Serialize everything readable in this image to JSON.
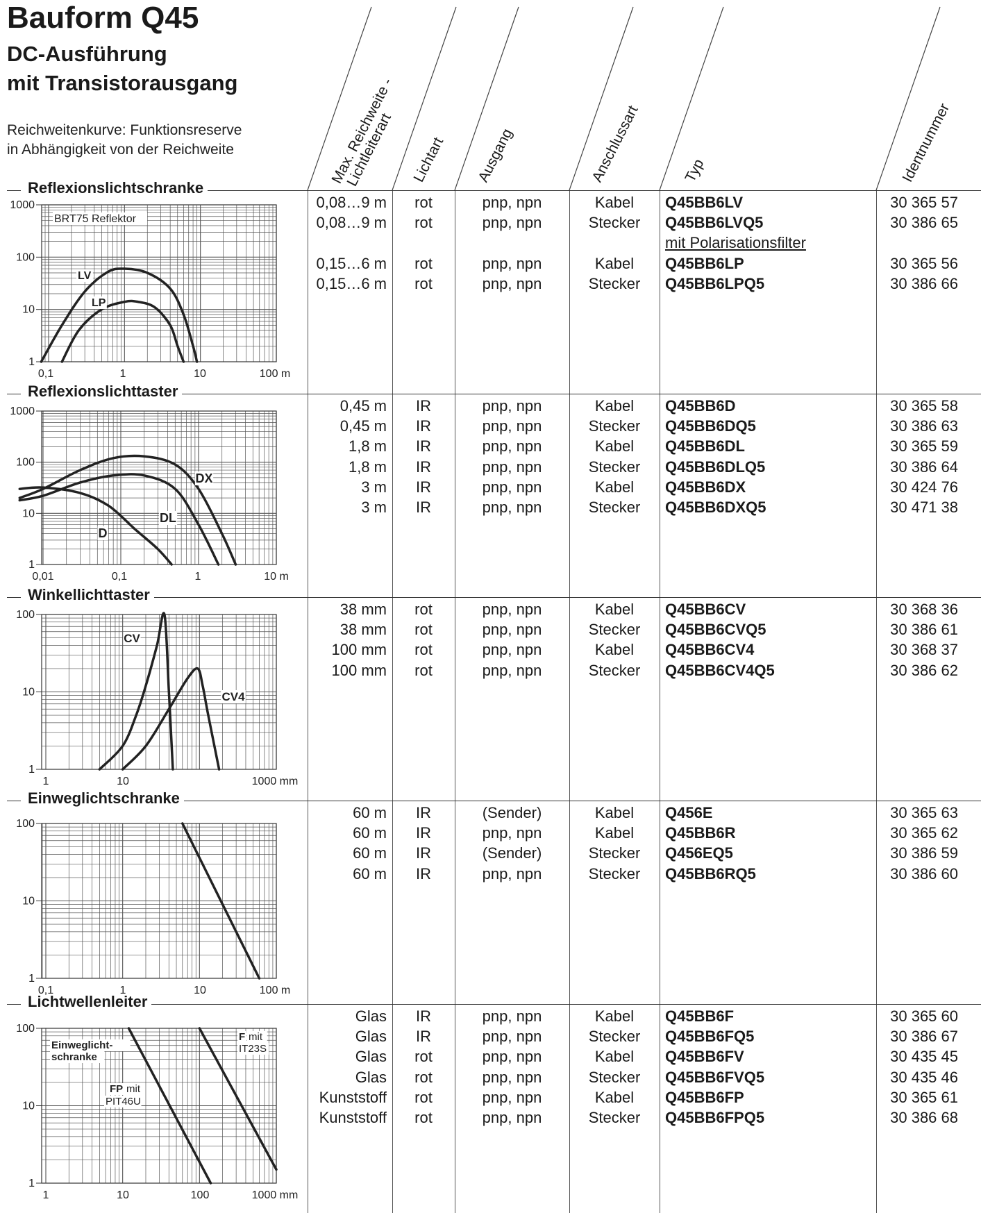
{
  "page": {
    "title": "Bauform Q45",
    "subtitle1": "DC-Ausführung",
    "subtitle2": "mit Transistorausgang",
    "note1": "Reichweitenkurve: Funktionsreserve",
    "note2": "in Abhängigkeit von der Reichweite"
  },
  "headers": {
    "reichweite": "Max. Reichweite -",
    "lichtleiterart": "Lichtleiterart",
    "lichtart": "Lichtart",
    "ausgang": "Ausgang",
    "anschlussart": "Anschlussart",
    "typ": "Typ",
    "identnummer": "Identnummer"
  },
  "sections": [
    {
      "title": "Reflexionslichtschranke",
      "rows": [
        {
          "r": "0,08…9 m",
          "l": "rot",
          "a": "pnp, npn",
          "an": "Kabel",
          "t": "Q45BB6LV",
          "i": "30 365 57"
        },
        {
          "r": "0,08…9 m",
          "l": "rot",
          "a": "pnp, npn",
          "an": "Stecker",
          "t": "Q45BB6LVQ5",
          "i": "30 386 65"
        },
        {
          "r": "",
          "l": "",
          "a": "",
          "an": "",
          "t": "mit Polarisationsfilter",
          "i": ""
        },
        {
          "r": "0,15…6 m",
          "l": "rot",
          "a": "pnp, npn",
          "an": "Kabel",
          "t": "Q45BB6LP",
          "i": "30 365 56"
        },
        {
          "r": "0,15…6 m",
          "l": "rot",
          "a": "pnp, npn",
          "an": "Stecker",
          "t": "Q45BB6LPQ5",
          "i": "30 386 66"
        }
      ]
    },
    {
      "title": "Reflexionslichttaster",
      "rows": [
        {
          "r": "0,45 m",
          "l": "IR",
          "a": "pnp, npn",
          "an": "Kabel",
          "t": "Q45BB6D",
          "i": "30 365 58"
        },
        {
          "r": "0,45 m",
          "l": "IR",
          "a": "pnp, npn",
          "an": "Stecker",
          "t": "Q45BB6DQ5",
          "i": "30 386 63"
        },
        {
          "r": "1,8 m",
          "l": "IR",
          "a": "pnp, npn",
          "an": "Kabel",
          "t": "Q45BB6DL",
          "i": "30 365 59"
        },
        {
          "r": "1,8 m",
          "l": "IR",
          "a": "pnp, npn",
          "an": "Stecker",
          "t": "Q45BB6DLQ5",
          "i": "30 386 64"
        },
        {
          "r": "3 m",
          "l": "IR",
          "a": "pnp, npn",
          "an": "Kabel",
          "t": "Q45BB6DX",
          "i": "30 424 76"
        },
        {
          "r": "3 m",
          "l": "IR",
          "a": "pnp, npn",
          "an": "Stecker",
          "t": "Q45BB6DXQ5",
          "i": "30 471 38"
        }
      ]
    },
    {
      "title": "Winkellichttaster",
      "rows": [
        {
          "r": "38 mm",
          "l": "rot",
          "a": "pnp, npn",
          "an": "Kabel",
          "t": "Q45BB6CV",
          "i": "30 368 36"
        },
        {
          "r": "38 mm",
          "l": "rot",
          "a": "pnp, npn",
          "an": "Stecker",
          "t": "Q45BB6CVQ5",
          "i": "30 386 61"
        },
        {
          "r": "100 mm",
          "l": "rot",
          "a": "pnp, npn",
          "an": "Kabel",
          "t": "Q45BB6CV4",
          "i": "30 368 37"
        },
        {
          "r": "100 mm",
          "l": "rot",
          "a": "pnp, npn",
          "an": "Stecker",
          "t": "Q45BB6CV4Q5",
          "i": "30 386 62"
        }
      ]
    },
    {
      "title": "Einweglichtschranke",
      "rows": [
        {
          "r": "60 m",
          "l": "IR",
          "a": "(Sender)",
          "an": "Kabel",
          "t": "Q456E",
          "i": "30 365 63"
        },
        {
          "r": "60 m",
          "l": "IR",
          "a": "pnp, npn",
          "an": "Kabel",
          "t": "Q45BB6R",
          "i": "30 365 62"
        },
        {
          "r": "60 m",
          "l": "IR",
          "a": "(Sender)",
          "an": "Stecker",
          "t": "Q456EQ5",
          "i": "30 386 59"
        },
        {
          "r": "60 m",
          "l": "IR",
          "a": "pnp, npn",
          "an": "Stecker",
          "t": "Q45BB6RQ5",
          "i": "30 386 60"
        }
      ]
    },
    {
      "title": "Lichtwellenleiter",
      "rows": [
        {
          "r": "Glas",
          "l": "IR",
          "a": "pnp, npn",
          "an": "Kabel",
          "t": "Q45BB6F",
          "i": "30 365 60"
        },
        {
          "r": "Glas",
          "l": "IR",
          "a": "pnp, npn",
          "an": "Stecker",
          "t": "Q45BB6FQ5",
          "i": "30 386 67"
        },
        {
          "r": "Glas",
          "l": "rot",
          "a": "pnp, npn",
          "an": "Kabel",
          "t": "Q45BB6FV",
          "i": "30 435 45"
        },
        {
          "r": "Glas",
          "l": "rot",
          "a": "pnp, npn",
          "an": "Stecker",
          "t": "Q45BB6FVQ5",
          "i": "30 435 46"
        },
        {
          "r": "Kunststoff",
          "l": "rot",
          "a": "pnp, npn",
          "an": "Kabel",
          "t": "Q45BB6FP",
          "i": "30 365 61"
        },
        {
          "r": "Kunststoff",
          "l": "rot",
          "a": "pnp, npn",
          "an": "Stecker",
          "t": "Q45BB6FPQ5",
          "i": "30 386 68"
        }
      ]
    }
  ],
  "chart_data": [
    {
      "type": "line",
      "log_x": true,
      "log_y": true,
      "xlim": [
        0.05,
        100
      ],
      "ylim": [
        1,
        1000
      ],
      "x_ticks": [
        "0,1",
        "1",
        "10",
        "100 m"
      ],
      "y_ticks": [
        "1000",
        "100",
        "10",
        "1"
      ],
      "annotations": [
        "BRT75 Reflektor"
      ],
      "series": [
        {
          "name": "LV",
          "x": [
            0.08,
            0.15,
            0.3,
            0.6,
            1,
            2,
            4,
            6,
            8,
            9
          ],
          "y": [
            1,
            5,
            22,
            52,
            60,
            50,
            25,
            8,
            2,
            1
          ]
        },
        {
          "name": "LP",
          "x": [
            0.15,
            0.25,
            0.5,
            1,
            1.5,
            2.5,
            4,
            5,
            6
          ],
          "y": [
            1,
            4,
            10,
            14,
            14,
            11,
            5,
            2,
            1
          ]
        }
      ]
    },
    {
      "type": "line",
      "log_x": true,
      "log_y": true,
      "xlim": [
        0.005,
        10
      ],
      "ylim": [
        1,
        1000
      ],
      "x_ticks": [
        "0,01",
        "0,1",
        "1",
        "10 m"
      ],
      "y_ticks": [
        "1000",
        "100",
        "10",
        "1"
      ],
      "series": [
        {
          "name": "D",
          "x": [
            0.005,
            0.01,
            0.03,
            0.07,
            0.15,
            0.3,
            0.45
          ],
          "y": [
            30,
            32,
            25,
            14,
            5,
            2,
            1
          ]
        },
        {
          "name": "DL",
          "x": [
            0.005,
            0.01,
            0.03,
            0.08,
            0.2,
            0.5,
            1,
            1.8
          ],
          "y": [
            18,
            22,
            40,
            55,
            55,
            30,
            6,
            1
          ]
        },
        {
          "name": "DX",
          "x": [
            0.005,
            0.01,
            0.03,
            0.08,
            0.2,
            0.5,
            1,
            2,
            3
          ],
          "y": [
            20,
            30,
            70,
            120,
            130,
            90,
            30,
            4,
            1
          ]
        }
      ]
    },
    {
      "type": "line",
      "log_x": true,
      "log_y": true,
      "xlim": [
        1,
        1000
      ],
      "ylim": [
        1,
        100
      ],
      "x_ticks": [
        "1",
        "10",
        "1000 mm"
      ],
      "y_ticks": [
        "100",
        "10",
        "1"
      ],
      "series": [
        {
          "name": "CV",
          "x": [
            5,
            10,
            15,
            20,
            28,
            35,
            40,
            45
          ],
          "y": [
            1,
            2,
            5,
            12,
            40,
            100,
            10,
            1
          ]
        },
        {
          "name": "CV4",
          "x": [
            10,
            20,
            40,
            70,
            95,
            110,
            130,
            180
          ],
          "y": [
            1,
            2,
            6,
            15,
            20,
            12,
            5,
            1
          ]
        }
      ]
    },
    {
      "type": "line",
      "log_x": true,
      "log_y": true,
      "xlim": [
        0.05,
        100
      ],
      "ylim": [
        1,
        100
      ],
      "x_ticks": [
        "0,1",
        "1",
        "10",
        "100 m"
      ],
      "y_ticks": [
        "100",
        "10",
        "1"
      ],
      "series": [
        {
          "name": "",
          "x": [
            6,
            60
          ],
          "y": [
            100,
            1
          ]
        }
      ]
    },
    {
      "type": "line",
      "log_x": true,
      "log_y": true,
      "xlim": [
        1,
        1000
      ],
      "ylim": [
        1,
        100
      ],
      "x_ticks": [
        "1",
        "10",
        "100",
        "1000 mm"
      ],
      "y_ticks": [
        "100",
        "10",
        "1"
      ],
      "annotations": [
        "Einweglicht-",
        "schranke",
        "FP",
        "mit",
        "PIT46U",
        "F",
        "mit",
        "IT23S"
      ],
      "series": [
        {
          "name": "FP",
          "x": [
            12,
            140
          ],
          "y": [
            100,
            1
          ]
        },
        {
          "name": "F",
          "x": [
            100,
            1000
          ],
          "y": [
            100,
            1.5
          ]
        }
      ]
    }
  ]
}
